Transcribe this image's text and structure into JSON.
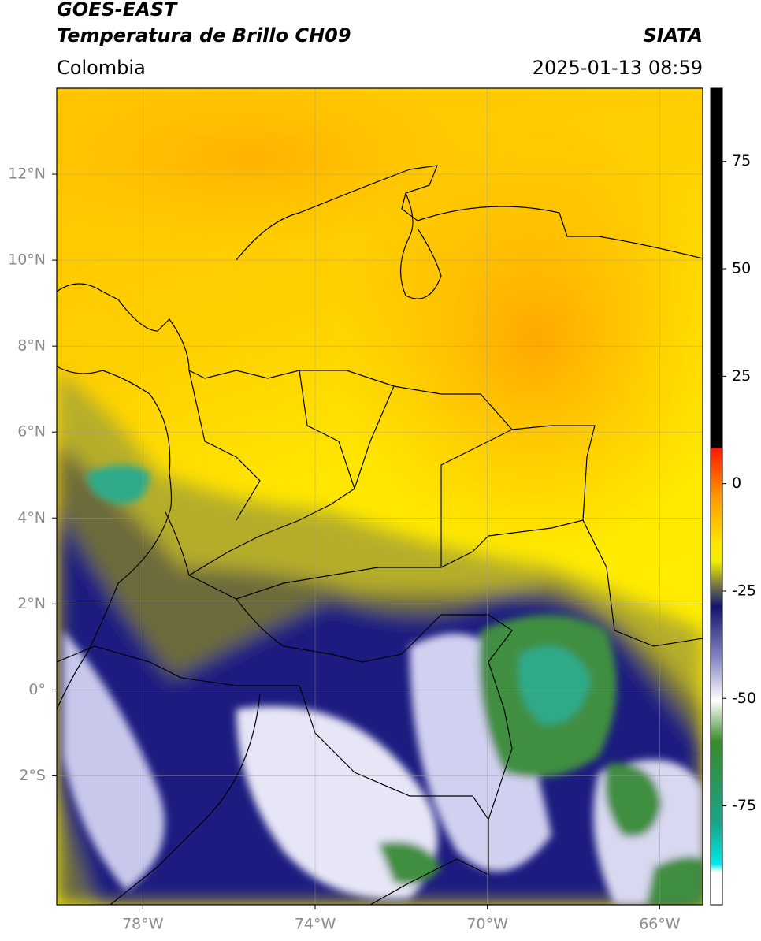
{
  "header": {
    "title": "GOES-EAST",
    "subtitle": "Temperatura de Brillo CH09",
    "source": "SIATA",
    "region": "Colombia",
    "datetime": "2025-01-13 08:59"
  },
  "map": {
    "xlim": [
      -80,
      -65
    ],
    "ylim": [
      -5,
      14
    ],
    "xticks": [
      {
        "value": -78,
        "label": "78°W"
      },
      {
        "value": -74,
        "label": "74°W"
      },
      {
        "value": -70,
        "label": "70°W"
      },
      {
        "value": -66,
        "label": "66°W"
      }
    ],
    "yticks": [
      {
        "value": 12,
        "label": "12°N"
      },
      {
        "value": 10,
        "label": "10°N"
      },
      {
        "value": 8,
        "label": "8°N"
      },
      {
        "value": 6,
        "label": "6°N"
      },
      {
        "value": 4,
        "label": "4°N"
      },
      {
        "value": 2,
        "label": "2°N"
      },
      {
        "value": 0,
        "label": "0°"
      },
      {
        "value": -2,
        "label": "2°S"
      }
    ],
    "grid": true
  },
  "colorbar": {
    "clim": [
      -98,
      92
    ],
    "ticks": [
      75,
      50,
      25,
      0,
      -25,
      -50,
      -75
    ]
  }
}
